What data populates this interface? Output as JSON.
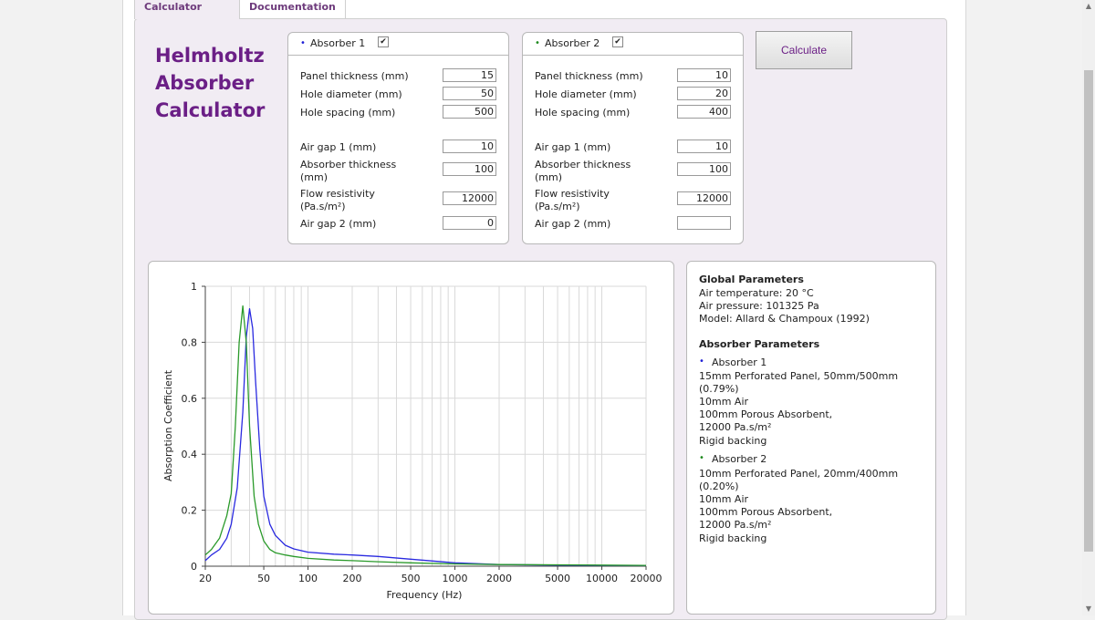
{
  "tabs": [
    {
      "label": "Calculator",
      "active": true
    },
    {
      "label": "Documentation",
      "active": false
    }
  ],
  "app_title": [
    "Helmholtz",
    "Absorber",
    "Calculator"
  ],
  "calculate_label": "Calculate",
  "absorbers": [
    {
      "name": "Absorber 1",
      "color": "#1f1fd6",
      "enabled": true,
      "check_glyph": "✔",
      "bullet": "•",
      "fields": {
        "panel_thickness": {
          "label": "Panel thickness (mm)",
          "value": "15"
        },
        "hole_diameter": {
          "label": "Hole diameter (mm)",
          "value": "50"
        },
        "hole_spacing": {
          "label": "Hole spacing (mm)",
          "value": "500"
        },
        "air_gap_1": {
          "label": "Air gap 1 (mm)",
          "value": "10"
        },
        "absorber_thickness": {
          "label": [
            "Absorber thickness",
            "(mm)"
          ],
          "value": "100"
        },
        "flow_resistivity": {
          "label": [
            "Flow resistivity",
            "(Pa.s/m²)"
          ],
          "value": "12000"
        },
        "air_gap_2": {
          "label": "Air gap 2 (mm)",
          "value": "0"
        }
      }
    },
    {
      "name": "Absorber 2",
      "color": "#1f8a1f",
      "enabled": true,
      "check_glyph": "✔",
      "bullet": "•",
      "fields": {
        "panel_thickness": {
          "label": "Panel thickness (mm)",
          "value": "10"
        },
        "hole_diameter": {
          "label": "Hole diameter (mm)",
          "value": "20"
        },
        "hole_spacing": {
          "label": "Hole spacing (mm)",
          "value": "400"
        },
        "air_gap_1": {
          "label": "Air gap 1 (mm)",
          "value": "10"
        },
        "absorber_thickness": {
          "label": [
            "Absorber thickness",
            "(mm)"
          ],
          "value": "100"
        },
        "flow_resistivity": {
          "label": [
            "Flow resistivity",
            "(Pa.s/m²)"
          ],
          "value": "12000"
        },
        "air_gap_2": {
          "label": "Air gap 2 (mm)",
          "value": ""
        }
      }
    }
  ],
  "info": {
    "global_heading": "Global Parameters",
    "global_lines": [
      "Air temperature: 20 °C",
      "Air pressure: 101325 Pa",
      "Model: Allard & Champoux (1992)"
    ],
    "absorber_heading": "Absorber Parameters",
    "absorbers": [
      {
        "name": "Absorber 1",
        "lines": [
          "15mm Perforated Panel, 50mm/500mm",
          "(0.79%)",
          "10mm Air",
          "100mm Porous Absorbent,",
          "12000 Pa.s/m²",
          "Rigid backing"
        ]
      },
      {
        "name": "Absorber 2",
        "lines": [
          "10mm Perforated Panel, 20mm/400mm",
          "(0.20%)",
          "10mm Air",
          "100mm Porous Absorbent,",
          "12000 Pa.s/m²",
          "Rigid backing"
        ]
      }
    ]
  },
  "chart_data": {
    "type": "line",
    "xlabel": "Frequency (Hz)",
    "ylabel": "Absorption Coefficient",
    "x_scale": "log",
    "xlim": [
      20,
      20000
    ],
    "ylim": [
      0,
      1
    ],
    "x_ticks": [
      20,
      50,
      100,
      200,
      500,
      1000,
      2000,
      5000,
      10000,
      20000
    ],
    "x_tick_labels": [
      "20",
      "50",
      "100",
      "200",
      "500",
      "1000",
      "2000",
      "5000",
      "10000",
      "20000"
    ],
    "y_ticks": [
      0,
      0.2,
      0.4,
      0.6,
      0.8,
      1
    ],
    "y_tick_labels": [
      "0",
      "0.2",
      "0.4",
      "0.6",
      "0.8",
      "1"
    ],
    "grid": true,
    "series": [
      {
        "name": "Absorber 1",
        "color": "#2a2ae0",
        "x": [
          20,
          22,
          25,
          28,
          30,
          33,
          36,
          38,
          40,
          42,
          44,
          47,
          50,
          55,
          60,
          70,
          80,
          100,
          150,
          200,
          300,
          500,
          1000,
          2000,
          5000,
          10000,
          20000
        ],
        "y": [
          0.02,
          0.04,
          0.06,
          0.1,
          0.15,
          0.28,
          0.55,
          0.82,
          0.92,
          0.85,
          0.66,
          0.42,
          0.25,
          0.15,
          0.11,
          0.075,
          0.062,
          0.05,
          0.043,
          0.04,
          0.035,
          0.025,
          0.012,
          0.006,
          0.004,
          0.003,
          0.003
        ]
      },
      {
        "name": "Absorber 2",
        "color": "#2a9a2a",
        "x": [
          20,
          22,
          25,
          28,
          30,
          32,
          34,
          36,
          38,
          40,
          43,
          46,
          50,
          55,
          60,
          70,
          80,
          100,
          150,
          200,
          300,
          500,
          1000,
          2000,
          5000,
          10000,
          20000
        ],
        "y": [
          0.04,
          0.06,
          0.1,
          0.18,
          0.26,
          0.5,
          0.8,
          0.93,
          0.8,
          0.5,
          0.25,
          0.15,
          0.09,
          0.06,
          0.048,
          0.04,
          0.035,
          0.028,
          0.022,
          0.02,
          0.016,
          0.012,
          0.008,
          0.006,
          0.005,
          0.004,
          0.003
        ]
      }
    ]
  }
}
